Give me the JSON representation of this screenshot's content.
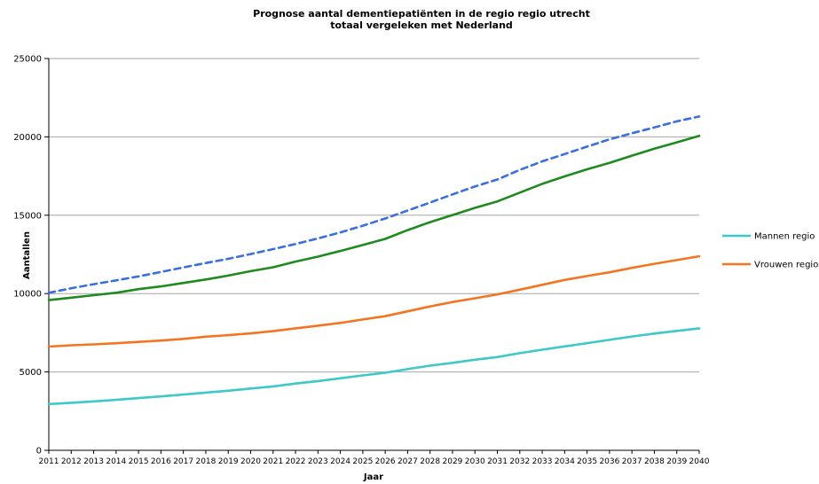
{
  "chart_data": {
    "type": "line",
    "title_line1": "Prognose aantal dementiepatiënten in de regio regio utrecht",
    "title_line2": "totaal vergeleken met Nederland",
    "xlabel": "Jaar",
    "ylabel": "Aantallen",
    "ylim": [
      0,
      25000
    ],
    "yticks": [
      "0",
      "5000",
      "10000",
      "15000",
      "20000",
      "25000"
    ],
    "grid": true,
    "legend_position": "right",
    "x": [
      "2011",
      "2012",
      "2013",
      "2014",
      "2015",
      "2016",
      "2017",
      "2018",
      "2019",
      "2020",
      "2021",
      "2022",
      "2023",
      "2024",
      "2025",
      "2026",
      "2027",
      "2028",
      "2029",
      "2030",
      "2031",
      "2032",
      "2033",
      "2034",
      "2035",
      "2036",
      "2037",
      "2038",
      "2039",
      "2040"
    ],
    "series": [
      {
        "name": "Mannen regio",
        "color": "#3ec8c8",
        "dashed": false,
        "in_legend": true,
        "values": [
          2950,
          3030,
          3120,
          3220,
          3330,
          3440,
          3560,
          3680,
          3800,
          3940,
          4080,
          4260,
          4420,
          4600,
          4780,
          4950,
          5180,
          5400,
          5580,
          5780,
          5950,
          6200,
          6420,
          6630,
          6840,
          7050,
          7260,
          7450,
          7620,
          7780
        ]
      },
      {
        "name": "Vrouwen regio",
        "color": "#f47521",
        "dashed": false,
        "in_legend": true,
        "values": [
          6620,
          6700,
          6760,
          6830,
          6920,
          7000,
          7110,
          7250,
          7350,
          7460,
          7600,
          7780,
          7950,
          8130,
          8350,
          8560,
          8870,
          9180,
          9460,
          9700,
          9950,
          10250,
          10560,
          10870,
          11120,
          11360,
          11640,
          11900,
          12140,
          12380
        ]
      },
      {
        "name": "",
        "color": "#1f8a1f",
        "dashed": false,
        "in_legend": false,
        "values": [
          9580,
          9740,
          9900,
          10050,
          10280,
          10460,
          10680,
          10900,
          11150,
          11430,
          11680,
          12040,
          12360,
          12720,
          13100,
          13490,
          14050,
          14560,
          15010,
          15470,
          15880,
          16440,
          17000,
          17480,
          17930,
          18340,
          18800,
          19250,
          19650,
          20070
        ]
      },
      {
        "name": "",
        "color": "#3b6fe0",
        "dashed": true,
        "in_legend": false,
        "values": [
          10050,
          10340,
          10600,
          10840,
          11100,
          11380,
          11670,
          11950,
          12220,
          12520,
          12840,
          13160,
          13520,
          13900,
          14330,
          14790,
          15300,
          15810,
          16330,
          16830,
          17280,
          17890,
          18440,
          18900,
          19380,
          19840,
          20230,
          20600,
          20990,
          21300
        ]
      }
    ]
  }
}
